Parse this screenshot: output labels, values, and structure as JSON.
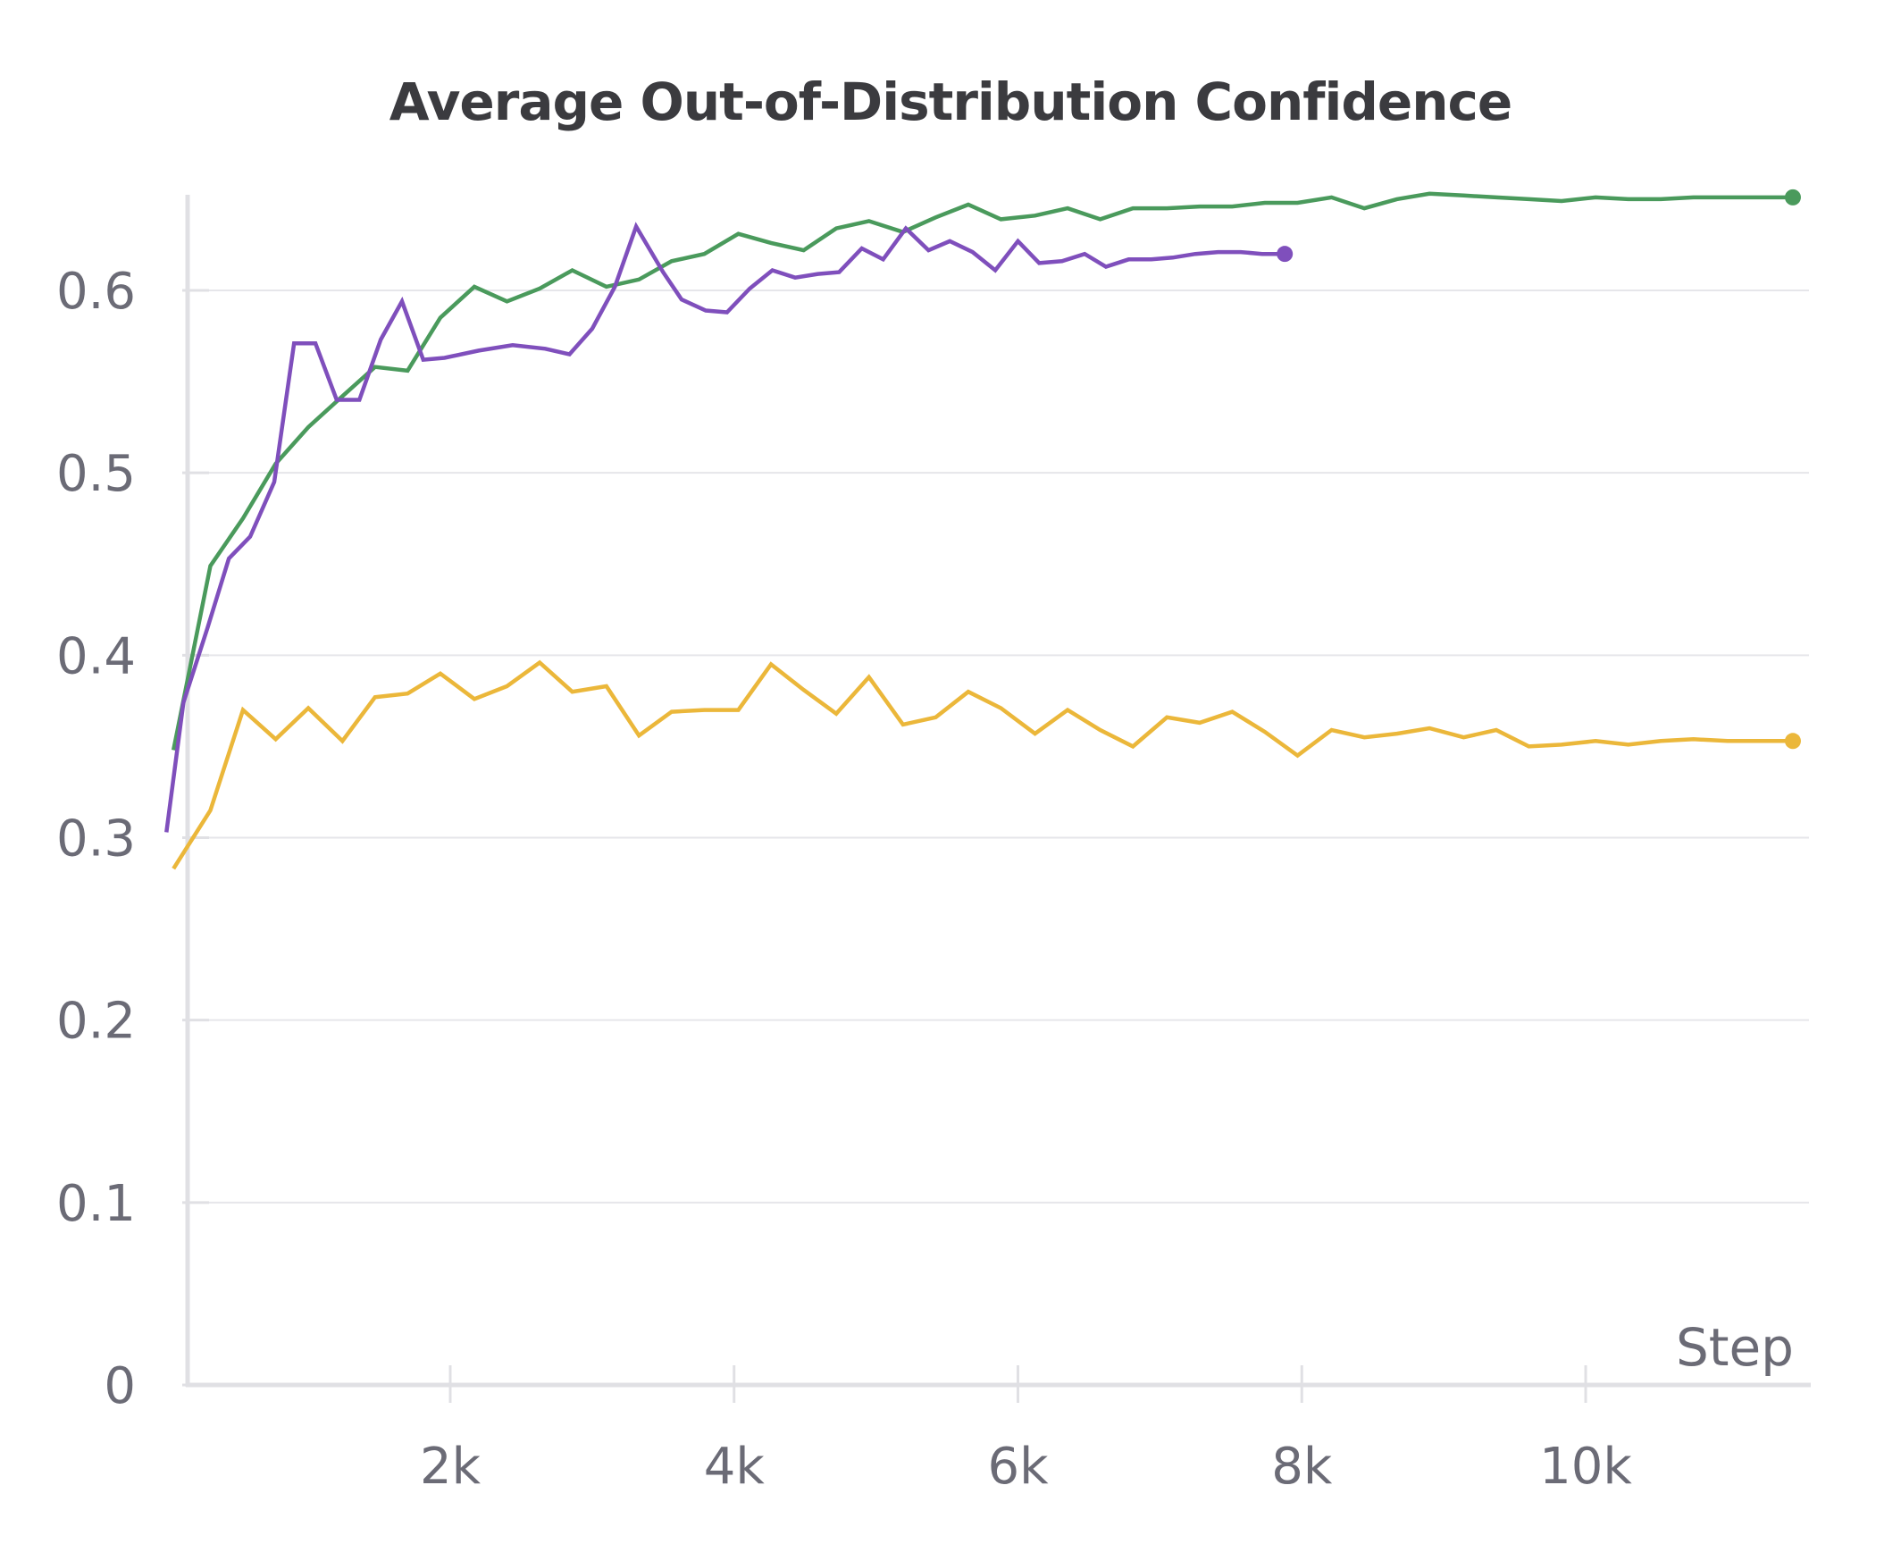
{
  "chart_data": {
    "type": "line",
    "title": "Average Out-of-Distribution Confidence",
    "xlabel": "Step",
    "ylabel": "",
    "xlim": [
      0,
      11500
    ],
    "ylim": [
      0,
      0.65
    ],
    "grid": true,
    "legend": "none",
    "x_ticks": [
      {
        "value": 2000,
        "label": "2k"
      },
      {
        "value": 4000,
        "label": "4k"
      },
      {
        "value": 6000,
        "label": "6k"
      },
      {
        "value": 8000,
        "label": "8k"
      },
      {
        "value": 10000,
        "label": "10k"
      }
    ],
    "y_ticks": [
      {
        "value": 0,
        "label": "0"
      },
      {
        "value": 0.1,
        "label": "0.1"
      },
      {
        "value": 0.2,
        "label": "0.2"
      },
      {
        "value": 0.3,
        "label": "0.3"
      },
      {
        "value": 0.4,
        "label": "0.4"
      },
      {
        "value": 0.5,
        "label": "0.5"
      },
      {
        "value": 0.6,
        "label": "0.6"
      }
    ],
    "series": [
      {
        "color": "#4a9a5c",
        "end_marker": true,
        "points": [
          [
            50,
            0.348
          ],
          [
            310,
            0.449
          ],
          [
            540,
            0.475
          ],
          [
            770,
            0.505
          ],
          [
            1000,
            0.525
          ],
          [
            1240,
            0.542
          ],
          [
            1470,
            0.558
          ],
          [
            1700,
            0.556
          ],
          [
            1930,
            0.585
          ],
          [
            2170,
            0.602
          ],
          [
            2400,
            0.594
          ],
          [
            2630,
            0.601
          ],
          [
            2860,
            0.611
          ],
          [
            3100,
            0.602
          ],
          [
            3330,
            0.606
          ],
          [
            3560,
            0.616
          ],
          [
            3790,
            0.62
          ],
          [
            4030,
            0.631
          ],
          [
            4260,
            0.626
          ],
          [
            4490,
            0.622
          ],
          [
            4720,
            0.634
          ],
          [
            4950,
            0.638
          ],
          [
            5190,
            0.632
          ],
          [
            5420,
            0.64
          ],
          [
            5650,
            0.647
          ],
          [
            5880,
            0.639
          ],
          [
            6120,
            0.641
          ],
          [
            6350,
            0.645
          ],
          [
            6580,
            0.639
          ],
          [
            6810,
            0.645
          ],
          [
            7050,
            0.645
          ],
          [
            7280,
            0.646
          ],
          [
            7510,
            0.646
          ],
          [
            7740,
            0.648
          ],
          [
            7970,
            0.648
          ],
          [
            8210,
            0.651
          ],
          [
            8440,
            0.645
          ],
          [
            8670,
            0.65
          ],
          [
            8900,
            0.653
          ],
          [
            9140,
            0.652
          ],
          [
            9370,
            0.651
          ],
          [
            9600,
            0.65
          ],
          [
            9830,
            0.649
          ],
          [
            10070,
            0.651
          ],
          [
            10300,
            0.65
          ],
          [
            10530,
            0.65
          ],
          [
            10760,
            0.651
          ],
          [
            11000,
            0.651
          ],
          [
            11230,
            0.651
          ],
          [
            11460,
            0.651
          ]
        ]
      },
      {
        "color": "#7f4fbc",
        "end_marker": true,
        "points": [
          [
            0,
            0.303
          ],
          [
            120,
            0.374
          ],
          [
            290,
            0.415
          ],
          [
            440,
            0.453
          ],
          [
            590,
            0.465
          ],
          [
            760,
            0.495
          ],
          [
            900,
            0.571
          ],
          [
            1050,
            0.571
          ],
          [
            1200,
            0.54
          ],
          [
            1360,
            0.54
          ],
          [
            1510,
            0.573
          ],
          [
            1660,
            0.594
          ],
          [
            1810,
            0.562
          ],
          [
            1960,
            0.563
          ],
          [
            2200,
            0.567
          ],
          [
            2440,
            0.57
          ],
          [
            2670,
            0.568
          ],
          [
            2840,
            0.565
          ],
          [
            3000,
            0.579
          ],
          [
            3160,
            0.602
          ],
          [
            3310,
            0.635
          ],
          [
            3500,
            0.61
          ],
          [
            3630,
            0.595
          ],
          [
            3800,
            0.589
          ],
          [
            3950,
            0.588
          ],
          [
            4110,
            0.601
          ],
          [
            4270,
            0.611
          ],
          [
            4430,
            0.607
          ],
          [
            4590,
            0.609
          ],
          [
            4740,
            0.61
          ],
          [
            4900,
            0.623
          ],
          [
            5050,
            0.617
          ],
          [
            5210,
            0.634
          ],
          [
            5370,
            0.622
          ],
          [
            5520,
            0.627
          ],
          [
            5680,
            0.621
          ],
          [
            5840,
            0.611
          ],
          [
            6000,
            0.627
          ],
          [
            6150,
            0.615
          ],
          [
            6310,
            0.616
          ],
          [
            6470,
            0.62
          ],
          [
            6620,
            0.613
          ],
          [
            6780,
            0.617
          ],
          [
            6940,
            0.617
          ],
          [
            7090,
            0.618
          ],
          [
            7250,
            0.62
          ],
          [
            7410,
            0.621
          ],
          [
            7570,
            0.621
          ],
          [
            7720,
            0.62
          ],
          [
            7880,
            0.62
          ]
        ]
      },
      {
        "color": "#ebb73a",
        "end_marker": true,
        "points": [
          [
            50,
            0.283
          ],
          [
            310,
            0.315
          ],
          [
            540,
            0.37
          ],
          [
            770,
            0.354
          ],
          [
            1000,
            0.371
          ],
          [
            1240,
            0.353
          ],
          [
            1470,
            0.377
          ],
          [
            1700,
            0.379
          ],
          [
            1930,
            0.39
          ],
          [
            2170,
            0.376
          ],
          [
            2400,
            0.383
          ],
          [
            2630,
            0.396
          ],
          [
            2860,
            0.38
          ],
          [
            3100,
            0.383
          ],
          [
            3330,
            0.356
          ],
          [
            3560,
            0.369
          ],
          [
            3790,
            0.37
          ],
          [
            4030,
            0.37
          ],
          [
            4260,
            0.395
          ],
          [
            4490,
            0.381
          ],
          [
            4720,
            0.368
          ],
          [
            4950,
            0.388
          ],
          [
            5190,
            0.362
          ],
          [
            5420,
            0.366
          ],
          [
            5650,
            0.38
          ],
          [
            5880,
            0.371
          ],
          [
            6120,
            0.357
          ],
          [
            6350,
            0.37
          ],
          [
            6580,
            0.359
          ],
          [
            6810,
            0.35
          ],
          [
            7050,
            0.366
          ],
          [
            7280,
            0.363
          ],
          [
            7510,
            0.369
          ],
          [
            7740,
            0.358
          ],
          [
            7970,
            0.345
          ],
          [
            8210,
            0.359
          ],
          [
            8440,
            0.355
          ],
          [
            8670,
            0.357
          ],
          [
            8900,
            0.36
          ],
          [
            9140,
            0.355
          ],
          [
            9370,
            0.359
          ],
          [
            9600,
            0.35
          ],
          [
            9830,
            0.351
          ],
          [
            10070,
            0.353
          ],
          [
            10300,
            0.351
          ],
          [
            10530,
            0.353
          ],
          [
            10760,
            0.354
          ],
          [
            11000,
            0.353
          ],
          [
            11230,
            0.353
          ],
          [
            11460,
            0.353
          ]
        ]
      }
    ]
  }
}
